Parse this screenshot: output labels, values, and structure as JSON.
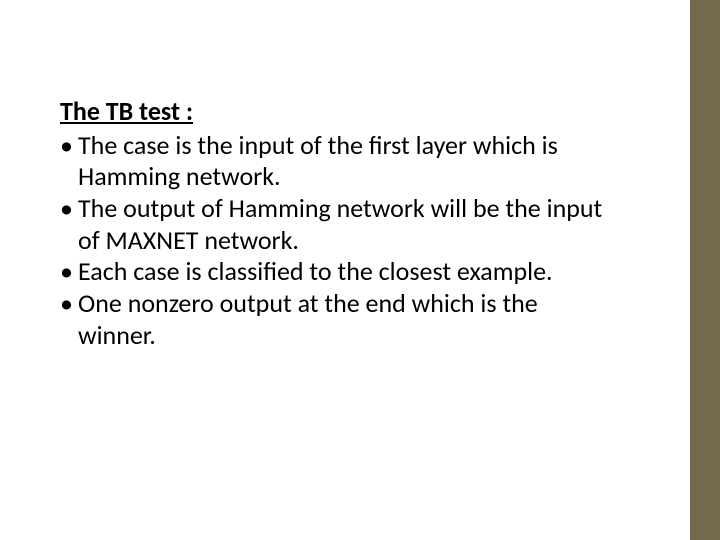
{
  "slide": {
    "heading": "The TB test :",
    "bullets": [
      "The case is the input of the first layer which is Hamming network.",
      "The output of Hamming network will be the input of MAXNET network.",
      "Each case is classified to the closest example.",
      "One nonzero output at the end which is the winner."
    ],
    "accent_color": "#726a4a",
    "background_color": "#ffffff",
    "text_color": "#000000",
    "heading_fontsize": 26,
    "body_fontsize": 26,
    "heading_weight": 700,
    "body_weight": 400,
    "accent_bar_width": 30
  }
}
